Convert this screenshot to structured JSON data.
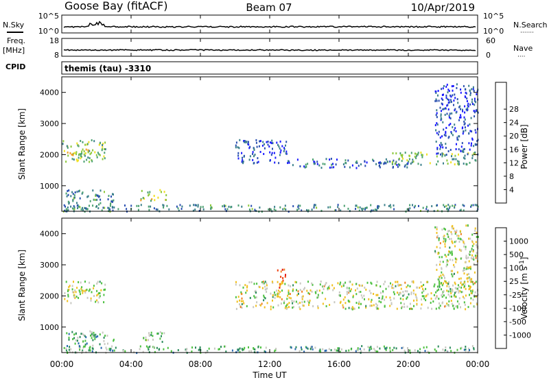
{
  "header": {
    "station": "Goose Bay (fitACF)",
    "beam": "Beam 07",
    "date": "10/Apr/2019"
  },
  "strips": {
    "nsky_label": "N.Sky",
    "nsearch_label": "N.Search",
    "nsearch_dots": "·······",
    "nsky_ticks": [
      "10^5",
      "10^0"
    ],
    "freq_label_line1": "Freq.",
    "freq_label_line2": "[MHz]",
    "freq_ticks": [
      "18",
      "8"
    ],
    "nave_label": "Nave",
    "nave_dots": "····",
    "nave_ticks": [
      "60",
      "0"
    ],
    "cpid_label": "CPID",
    "cpid_text": "themis (tau) -3310"
  },
  "chart_data": [
    {
      "type": "heatmap",
      "panel": "power",
      "ylabel": "Slant Range [km]",
      "ylim": [
        180,
        4500
      ],
      "yticks": [
        "1000",
        "2000",
        "3000",
        "4000"
      ],
      "xlim": [
        0,
        24
      ],
      "colorbar_label": "Power [dB]",
      "colorbar_ticks": [
        "4",
        "8",
        "12",
        "16",
        "20",
        "24",
        "28"
      ],
      "colorscale": [
        "#1a1aff",
        "#2a4fb0",
        "#3a7f8a",
        "#4aa070",
        "#8cc83a",
        "#f0e020",
        "#f0a020",
        "#f06010",
        "#e01010"
      ],
      "regions": [
        {
          "t0": 0.0,
          "t1": 2.5,
          "r0": 1800,
          "r1": 2500,
          "level": 0.45
        },
        {
          "t0": 0.3,
          "t1": 1.5,
          "r0": 1950,
          "r1": 2200,
          "level": 0.6
        },
        {
          "t0": 0.2,
          "t1": 3.0,
          "r0": 200,
          "r1": 900,
          "level": 0.3
        },
        {
          "t0": 4.5,
          "t1": 6.0,
          "r0": 550,
          "r1": 900,
          "level": 0.55
        },
        {
          "t0": 0.0,
          "t1": 24.0,
          "r0": 200,
          "r1": 420,
          "level": 0.3
        },
        {
          "t0": 10.0,
          "t1": 13.0,
          "r0": 1750,
          "r1": 2500,
          "level": 0.15
        },
        {
          "t0": 13.0,
          "t1": 20.0,
          "r0": 1600,
          "r1": 1900,
          "level": 0.2
        },
        {
          "t0": 19.0,
          "t1": 24.0,
          "r0": 1700,
          "r1": 2100,
          "level": 0.45
        },
        {
          "t0": 21.5,
          "t1": 24.0,
          "r0": 2000,
          "r1": 4300,
          "level": 0.15
        }
      ]
    },
    {
      "type": "heatmap",
      "panel": "velocity",
      "ylabel": "Slant Range [km]",
      "ylim": [
        180,
        4500
      ],
      "yticks": [
        "1000",
        "2000",
        "3000",
        "4000"
      ],
      "xlim": [
        0,
        24
      ],
      "xticks": [
        "00:00",
        "04:00",
        "08:00",
        "12:00",
        "16:00",
        "20:00",
        "00:00"
      ],
      "xlabel": "Time UT",
      "colorbar_label": "Velocity [m s^-1]",
      "colorbar_ticks": [
        "1000",
        "500",
        "100",
        "25",
        "-25",
        "-100",
        "-500",
        "-1000"
      ],
      "colorscale": [
        "#1a3cc8",
        "#2a6ab0",
        "#2a8a5a",
        "#4cc040",
        "#c8c8c0",
        "#f0c020",
        "#f08020",
        "#f04010",
        "#e01010"
      ],
      "regions": [
        {
          "t0": 0.0,
          "t1": 2.5,
          "r0": 1800,
          "r1": 2500,
          "level": 0.5
        },
        {
          "t0": 0.2,
          "t1": 3.0,
          "r0": 200,
          "r1": 900,
          "level": 0.35
        },
        {
          "t0": 4.5,
          "t1": 6.0,
          "r0": 550,
          "r1": 900,
          "level": 0.4
        },
        {
          "t0": 0.0,
          "t1": 24.0,
          "r0": 200,
          "r1": 420,
          "level": 0.35
        },
        {
          "t0": 10.0,
          "t1": 24.0,
          "r0": 1600,
          "r1": 2500,
          "level": 0.5
        },
        {
          "t0": 12.4,
          "t1": 12.9,
          "r0": 2300,
          "r1": 2950,
          "level": 0.8
        },
        {
          "t0": 21.5,
          "t1": 24.0,
          "r0": 2000,
          "r1": 4300,
          "level": 0.5
        }
      ]
    }
  ]
}
